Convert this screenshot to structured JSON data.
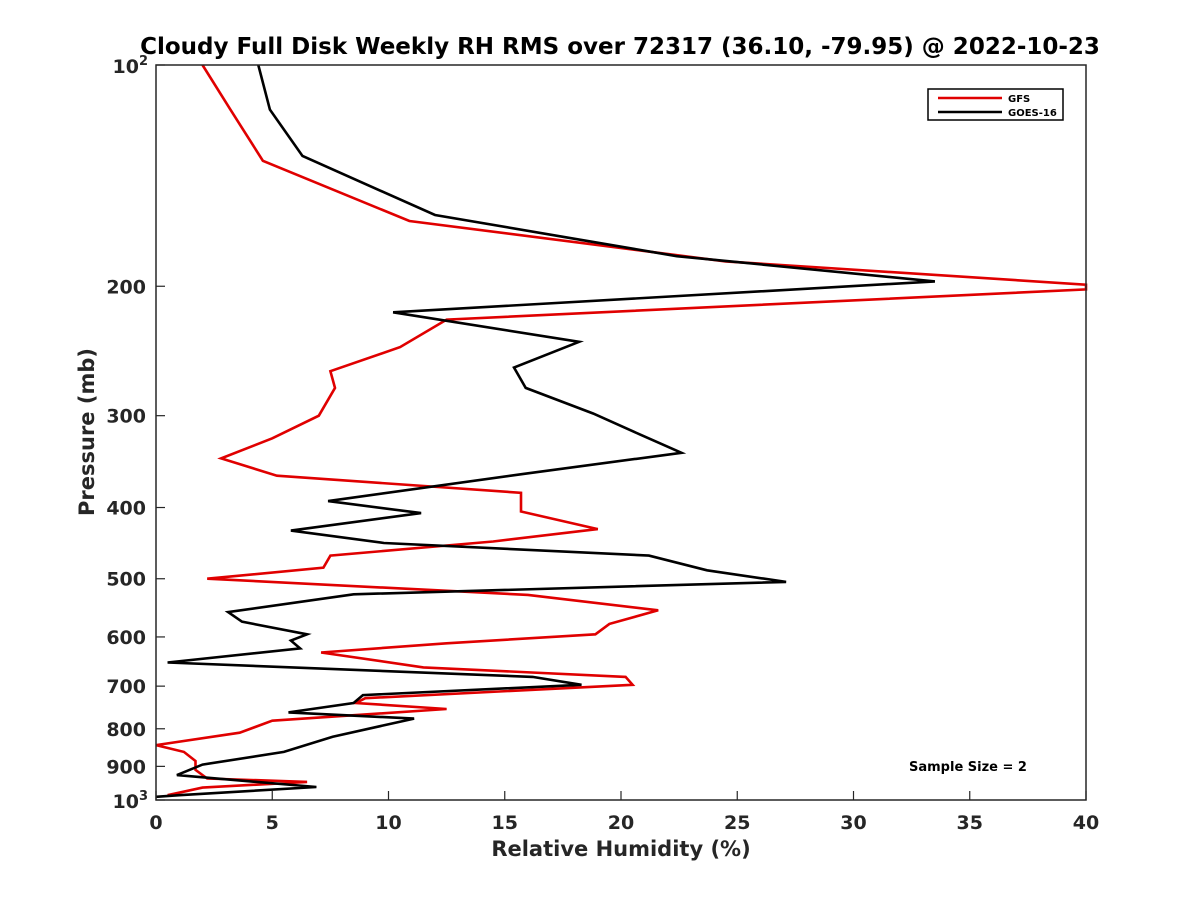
{
  "chart_data": {
    "type": "line",
    "title": "Cloudy Full Disk Weekly RH RMS over 72317 (36.10, -79.95) @ 2022-10-23",
    "xlabel": "Relative Humidity (%)",
    "ylabel": "Pressure (mb)",
    "xlim": [
      0,
      40
    ],
    "ylim": [
      100,
      1000
    ],
    "y_scale": "log",
    "y_reversed": true,
    "grid": false,
    "legend_position": "top-right",
    "x_ticks": [
      "0",
      "5",
      "10",
      "15",
      "20",
      "25",
      "30",
      "35",
      "40"
    ],
    "y_ticks": [
      {
        "value": 100,
        "base": "10",
        "sup": "2"
      },
      {
        "value": 200,
        "label": "200"
      },
      {
        "value": 300,
        "label": "300"
      },
      {
        "value": 400,
        "label": "400"
      },
      {
        "value": 500,
        "label": "500"
      },
      {
        "value": 600,
        "label": "600"
      },
      {
        "value": 700,
        "label": "700"
      },
      {
        "value": 800,
        "label": "800"
      },
      {
        "value": 900,
        "label": "900"
      },
      {
        "value": 1000,
        "base": "10",
        "sup": "3"
      }
    ],
    "annotation": "Sample Size = 2",
    "series": [
      {
        "name": "GFS",
        "color": "#e00000",
        "points": [
          [
            2.0,
            100
          ],
          [
            3.2,
            115
          ],
          [
            4.6,
            135
          ],
          [
            10.9,
            163
          ],
          [
            24.5,
            185
          ],
          [
            40.0,
            199
          ],
          [
            40.0,
            202
          ],
          [
            12.5,
            222
          ],
          [
            10.5,
            242
          ],
          [
            7.5,
            261
          ],
          [
            7.7,
            275
          ],
          [
            7.0,
            300
          ],
          [
            5.0,
            322
          ],
          [
            2.8,
            343
          ],
          [
            5.2,
            362
          ],
          [
            15.7,
            382
          ],
          [
            15.7,
            405
          ],
          [
            19.0,
            428
          ],
          [
            14.5,
            445
          ],
          [
            7.5,
            465
          ],
          [
            7.2,
            483
          ],
          [
            2.2,
            500
          ],
          [
            16.0,
            526
          ],
          [
            21.6,
            552
          ],
          [
            19.5,
            576
          ],
          [
            18.9,
            595
          ],
          [
            12.5,
            612
          ],
          [
            7.1,
            630
          ],
          [
            11.5,
            660
          ],
          [
            20.2,
            680
          ],
          [
            20.5,
            697
          ],
          [
            9.0,
            727
          ],
          [
            8.6,
            738
          ],
          [
            12.5,
            752
          ],
          [
            5.0,
            780
          ],
          [
            3.6,
            810
          ],
          [
            0.0,
            842
          ],
          [
            1.2,
            860
          ],
          [
            1.7,
            885
          ],
          [
            1.7,
            910
          ],
          [
            2.2,
            935
          ],
          [
            6.5,
            945
          ],
          [
            2.0,
            962
          ],
          [
            0.5,
            985
          ]
        ]
      },
      {
        "name": "GOES-16",
        "color": "#000000",
        "points": [
          [
            4.4,
            100
          ],
          [
            4.9,
            115
          ],
          [
            6.3,
            133
          ],
          [
            12.0,
            160
          ],
          [
            22.4,
            182
          ],
          [
            33.5,
            197
          ],
          [
            10.2,
            217
          ],
          [
            18.2,
            238
          ],
          [
            15.4,
            258
          ],
          [
            15.9,
            275
          ],
          [
            18.8,
            298
          ],
          [
            20.8,
            318
          ],
          [
            22.6,
            337
          ],
          [
            15.8,
            360
          ],
          [
            7.4,
            392
          ],
          [
            11.4,
            407
          ],
          [
            5.8,
            430
          ],
          [
            9.8,
            447
          ],
          [
            21.2,
            465
          ],
          [
            23.7,
            487
          ],
          [
            27.1,
            505
          ],
          [
            8.5,
            525
          ],
          [
            3.1,
            555
          ],
          [
            3.7,
            572
          ],
          [
            6.5,
            595
          ],
          [
            5.8,
            607
          ],
          [
            6.2,
            622
          ],
          [
            0.5,
            650
          ],
          [
            16.2,
            680
          ],
          [
            18.3,
            697
          ],
          [
            8.9,
            720
          ],
          [
            8.5,
            738
          ],
          [
            5.7,
            760
          ],
          [
            11.1,
            775
          ],
          [
            7.6,
            820
          ],
          [
            5.5,
            860
          ],
          [
            2.0,
            895
          ],
          [
            0.9,
            925
          ],
          [
            6.9,
            960
          ],
          [
            1.0,
            985
          ],
          [
            0.0,
            990
          ]
        ]
      }
    ]
  }
}
